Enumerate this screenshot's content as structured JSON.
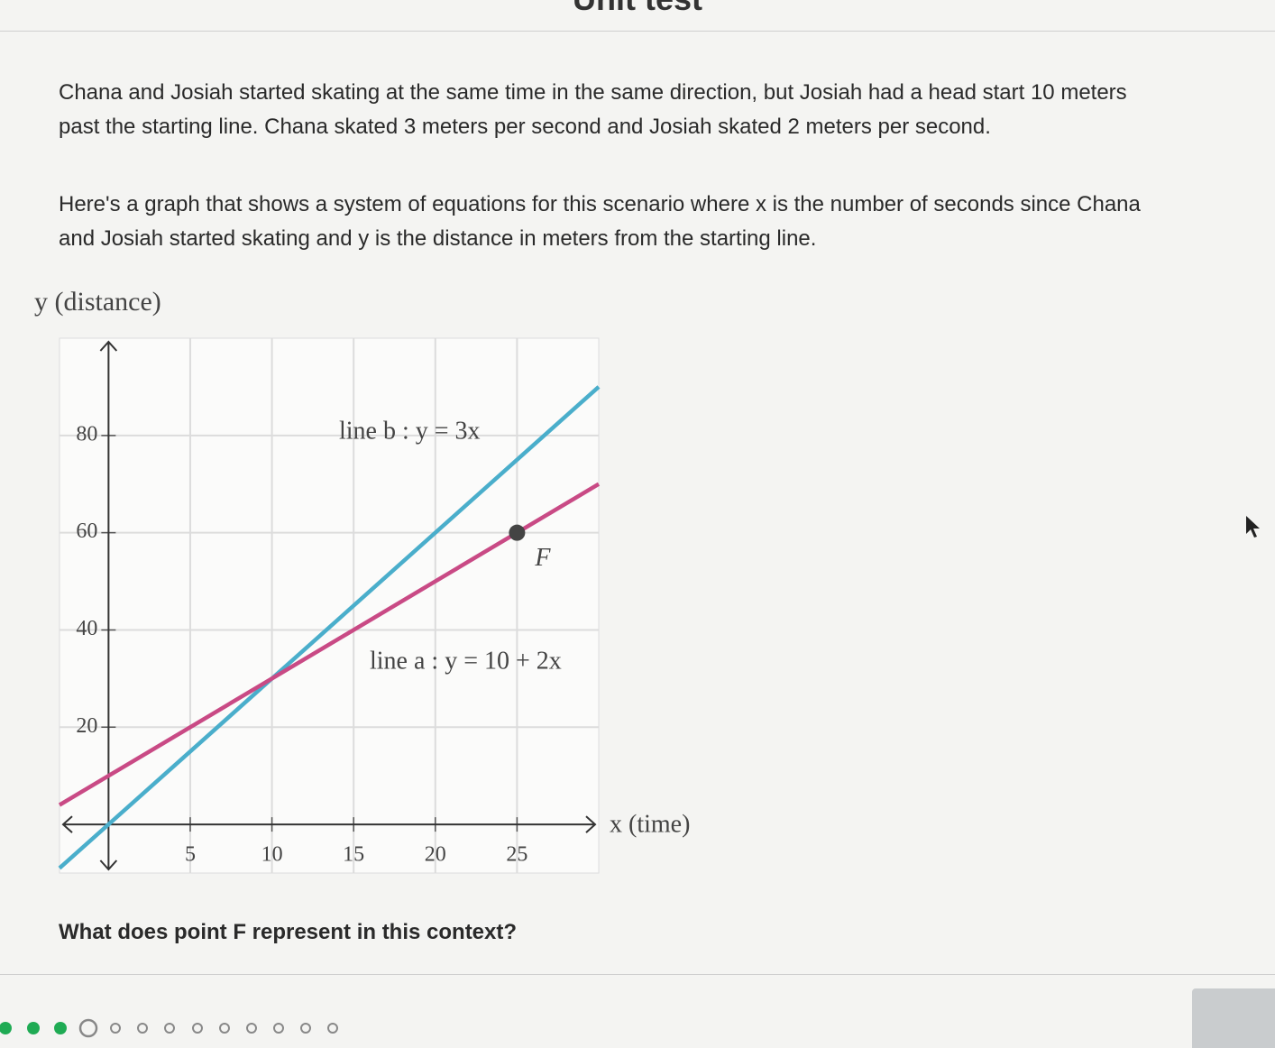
{
  "header": {
    "title": "Unit test"
  },
  "problem": {
    "paragraphs": [
      "Chana and Josiah started skating at the same time in the same direction, but Josiah had a head start 10 meters past the starting line. Chana skated 3 meters per second and Josiah skated 2 meters per second.",
      "Here's a graph that shows a system of equations for this scenario where x is the number of seconds since Chana and Josiah started skating and y is the distance in meters from the starting line."
    ],
    "question": "What does point F represent in this context?"
  },
  "chart_data": {
    "type": "line",
    "x_label": "x (time)",
    "y_label": "y (distance)",
    "x": [
      -3,
      30
    ],
    "series": [
      {
        "name": "line b : y = 3x",
        "color": "#4aaecb",
        "values": [
          -9,
          90
        ]
      },
      {
        "name": "line a : y = 10 + 2x",
        "color": "#c94a85",
        "values": [
          4,
          70
        ]
      }
    ],
    "points": [
      {
        "label": "F",
        "x": 25,
        "y": 60
      }
    ],
    "xlim": [
      -3,
      30
    ],
    "ylim": [
      -10,
      100
    ],
    "xticks": [
      5,
      10,
      15,
      20,
      25
    ],
    "yticks": [
      20,
      40,
      60,
      80
    ],
    "grid": true
  }
}
